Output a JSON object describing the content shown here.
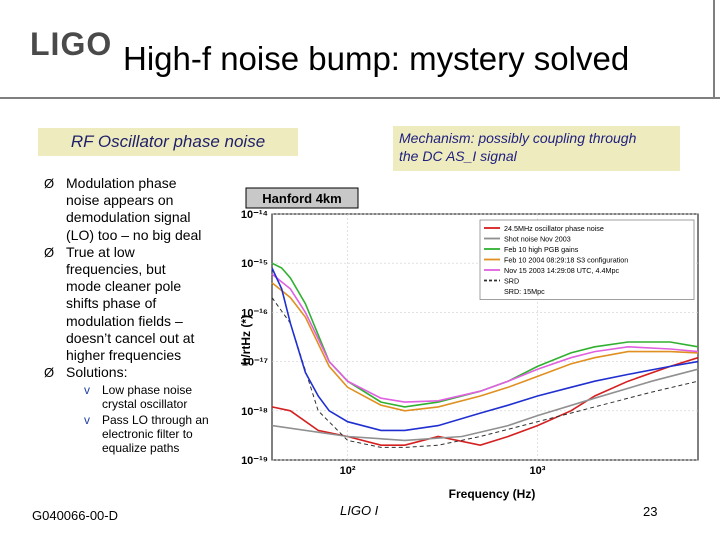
{
  "header": {
    "logo": "LIGO",
    "title": "High-f noise bump: mystery solved"
  },
  "callouts": {
    "rf_label": "RF Oscillator phase noise",
    "mechanism": [
      "Mechanism: possibly coupling through",
      "the DC AS_I signal"
    ]
  },
  "bullets": [
    {
      "marker": "Ø",
      "lines": [
        "Modulation phase",
        "noise appears on",
        "demodulation signal",
        "(LO) too – no big deal"
      ]
    },
    {
      "marker": "Ø",
      "lines": [
        "True at low",
        "frequencies, but",
        "mode cleaner pole",
        "shifts phase of",
        "modulation fields –",
        "doesn’t cancel out at",
        "higher frequencies"
      ]
    },
    {
      "marker": "Ø",
      "lines": [
        "Solutions:"
      ]
    }
  ],
  "sub_bullets": [
    {
      "marker": "v",
      "lines": [
        "Low phase noise",
        "crystal oscillator"
      ]
    },
    {
      "marker": "v",
      "lines": [
        "Pass LO through an",
        "electronic filter to",
        "equalize paths"
      ]
    }
  ],
  "footer": {
    "left": "G040066-00-D",
    "center": "LIGO I",
    "page": "23"
  },
  "chart_data": {
    "type": "line",
    "title": "Hanford 4km",
    "xlabel": "Frequency (Hz)",
    "ylabel": "h/rtHz (*)",
    "x_scale": "log",
    "y_scale": "log",
    "xlim": [
      40,
      7000
    ],
    "ylim": [
      1e-19,
      1e-14
    ],
    "x_tick_labels": [
      "10²",
      "10³"
    ],
    "x_ticks": [
      100,
      1000
    ],
    "y_tick_labels": [
      "10⁻¹⁴",
      "10⁻¹⁵",
      "10⁻¹⁶",
      "10⁻¹⁷",
      "10⁻¹⁸",
      "10⁻¹⁹"
    ],
    "y_ticks": [
      1e-14,
      1e-15,
      1e-16,
      1e-17,
      1e-18,
      1e-19
    ],
    "legend_position": "top-right",
    "legend_note": "SRD: 15Mpc",
    "series": [
      {
        "name": "24.5MHz oscillator phase noise",
        "color": "#d42020",
        "x": [
          40,
          50,
          70,
          100,
          150,
          200,
          300,
          500,
          700,
          1000,
          1500,
          2000,
          3000,
          5000,
          7000
        ],
        "y": [
          1.2e-18,
          1e-18,
          4e-19,
          3e-19,
          2e-19,
          2e-19,
          3e-19,
          2e-19,
          3e-19,
          5e-19,
          1e-18,
          2e-18,
          4e-18,
          8e-18,
          1.2e-17
        ]
      },
      {
        "name": "Shot noise Nov 2003",
        "color": "#909090",
        "x": [
          40,
          100,
          200,
          400,
          700,
          1000,
          2000,
          4000,
          7000
        ],
        "y": [
          5e-19,
          3e-19,
          2.5e-19,
          3e-19,
          5e-19,
          8e-19,
          1.8e-18,
          4e-18,
          7e-18
        ]
      },
      {
        "name": "Feb 10 high PGB gains",
        "color": "#30b030",
        "x": [
          40,
          45,
          50,
          60,
          80,
          100,
          150,
          200,
          300,
          500,
          700,
          1000,
          1500,
          2000,
          3000,
          5000,
          7000
        ],
        "y": [
          1e-15,
          8e-16,
          5e-16,
          1.5e-16,
          1e-17,
          4e-18,
          1.5e-18,
          1.2e-18,
          1.5e-18,
          2.5e-18,
          4e-18,
          8e-18,
          1.5e-17,
          2e-17,
          2.5e-17,
          2.5e-17,
          2e-17
        ]
      },
      {
        "name": "Feb 10 2004 08:29:18 S3 configuration",
        "color": "#e09020",
        "x": [
          40,
          50,
          60,
          80,
          100,
          150,
          200,
          300,
          500,
          700,
          1000,
          1500,
          2000,
          3000,
          5000,
          7000
        ],
        "y": [
          4e-16,
          2e-16,
          8e-17,
          8e-18,
          3e-18,
          1.3e-18,
          1e-18,
          1.2e-18,
          2e-18,
          3e-18,
          5e-18,
          9e-18,
          1.2e-17,
          1.6e-17,
          1.6e-17,
          1.5e-17
        ]
      },
      {
        "name": "Nov 15 2003 14:29:08 UTC, 4.4Mpc",
        "color": "#e060e0",
        "x": [
          40,
          50,
          60,
          80,
          100,
          150,
          200,
          300,
          500,
          700,
          1000,
          1500,
          2000,
          3000,
          5000,
          7000
        ],
        "y": [
          6e-16,
          3e-16,
          1e-16,
          1e-17,
          4e-18,
          1.8e-18,
          1.5e-18,
          1.6e-18,
          2.5e-18,
          4e-18,
          7e-18,
          1.2e-17,
          1.6e-17,
          2e-17,
          1.8e-17,
          1.6e-17
        ]
      },
      {
        "name": "SRD",
        "color": "#303030",
        "dash": true,
        "x": [
          40,
          50,
          70,
          100,
          150,
          200,
          300,
          500,
          1000,
          2000,
          4000,
          7000
        ],
        "y": [
          2e-16,
          6e-17,
          1e-18,
          2.5e-19,
          1.8e-19,
          1.8e-19,
          2e-19,
          3e-19,
          6e-19,
          1.2e-18,
          2.4e-18,
          4e-18
        ]
      },
      {
        "name": "",
        "color": "#2030d0",
        "x": [
          40,
          45,
          50,
          60,
          70,
          80,
          100,
          150,
          200,
          300,
          500,
          700,
          1000,
          1500,
          2000,
          3000,
          5000,
          7000
        ],
        "y": [
          8e-16,
          3e-16,
          6e-17,
          6e-18,
          2e-18,
          1e-18,
          6e-19,
          4e-19,
          4e-19,
          5e-19,
          9e-19,
          1.3e-18,
          2e-18,
          3e-18,
          4e-18,
          5.5e-18,
          8e-18,
          1e-17
        ]
      }
    ]
  }
}
